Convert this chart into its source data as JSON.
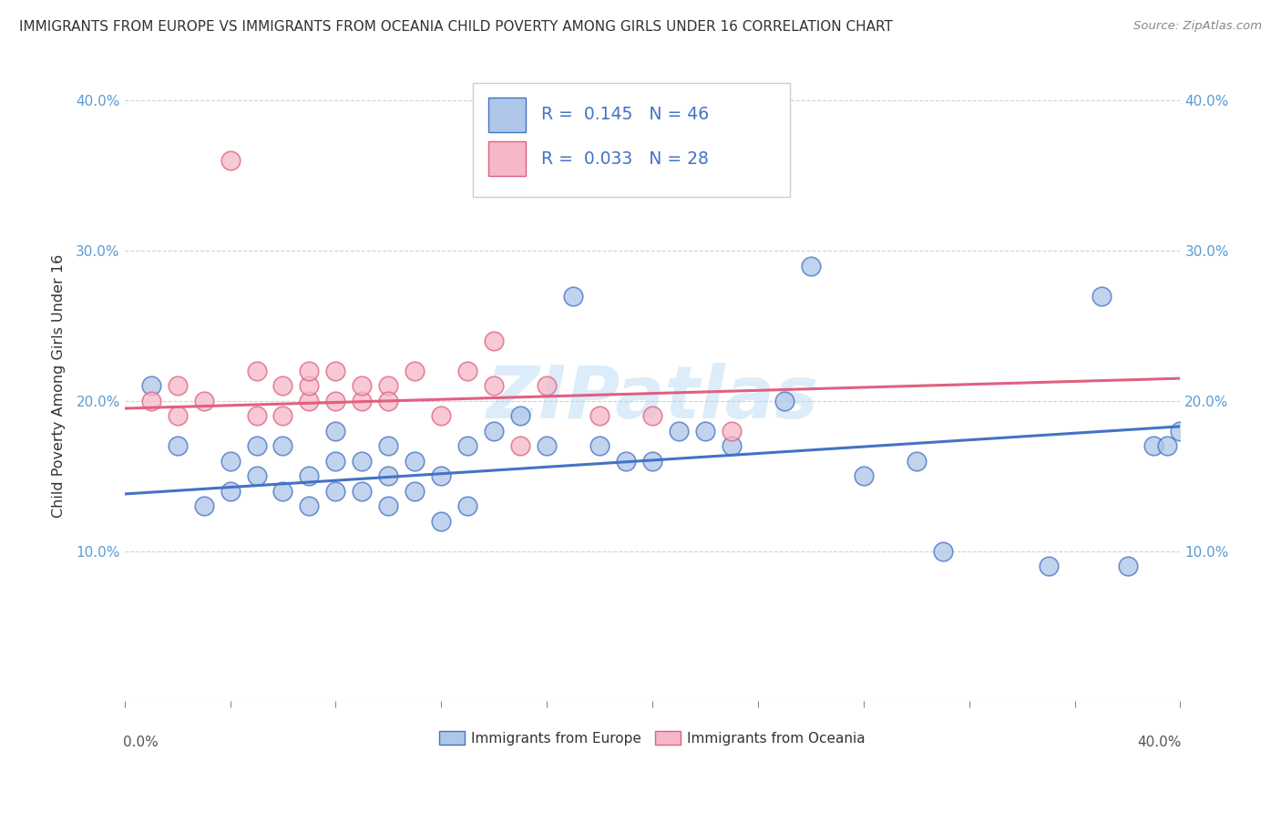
{
  "title": "IMMIGRANTS FROM EUROPE VS IMMIGRANTS FROM OCEANIA CHILD POVERTY AMONG GIRLS UNDER 16 CORRELATION CHART",
  "source": "Source: ZipAtlas.com",
  "ylabel": "Child Poverty Among Girls Under 16",
  "xlim": [
    0.0,
    0.4
  ],
  "ylim": [
    0.0,
    0.42
  ],
  "yticks": [
    0.1,
    0.2,
    0.3,
    0.4
  ],
  "ytick_labels": [
    "10.0%",
    "20.0%",
    "30.0%",
    "40.0%"
  ],
  "xtick_labels": [
    "0.0%",
    "40.0%"
  ],
  "legend_labels": [
    "Immigrants from Europe",
    "Immigrants from Oceania"
  ],
  "blue_R": "0.145",
  "blue_N": "46",
  "pink_R": "0.033",
  "pink_N": "28",
  "blue_color": "#aec6e8",
  "pink_color": "#f4b8c8",
  "blue_edge_color": "#4472c4",
  "pink_edge_color": "#e06080",
  "blue_line_color": "#4472c4",
  "pink_line_color": "#e06080",
  "watermark": "ZIPatlas",
  "blue_scatter_x": [
    0.01,
    0.02,
    0.03,
    0.04,
    0.04,
    0.05,
    0.05,
    0.06,
    0.06,
    0.07,
    0.07,
    0.08,
    0.08,
    0.08,
    0.09,
    0.09,
    0.1,
    0.1,
    0.1,
    0.11,
    0.11,
    0.12,
    0.12,
    0.13,
    0.13,
    0.14,
    0.15,
    0.16,
    0.17,
    0.18,
    0.19,
    0.2,
    0.21,
    0.22,
    0.23,
    0.25,
    0.26,
    0.28,
    0.3,
    0.31,
    0.35,
    0.37,
    0.38,
    0.39,
    0.395,
    0.4
  ],
  "blue_scatter_y": [
    0.21,
    0.17,
    0.13,
    0.14,
    0.16,
    0.15,
    0.17,
    0.14,
    0.17,
    0.13,
    0.15,
    0.14,
    0.16,
    0.18,
    0.14,
    0.16,
    0.13,
    0.15,
    0.17,
    0.14,
    0.16,
    0.12,
    0.15,
    0.13,
    0.17,
    0.18,
    0.19,
    0.17,
    0.27,
    0.17,
    0.16,
    0.16,
    0.18,
    0.18,
    0.17,
    0.2,
    0.29,
    0.15,
    0.16,
    0.1,
    0.09,
    0.27,
    0.09,
    0.17,
    0.17,
    0.18
  ],
  "pink_scatter_x": [
    0.01,
    0.02,
    0.02,
    0.03,
    0.04,
    0.05,
    0.05,
    0.06,
    0.06,
    0.07,
    0.07,
    0.07,
    0.08,
    0.08,
    0.09,
    0.09,
    0.1,
    0.1,
    0.11,
    0.12,
    0.13,
    0.14,
    0.14,
    0.15,
    0.16,
    0.18,
    0.2,
    0.23
  ],
  "pink_scatter_y": [
    0.2,
    0.19,
    0.21,
    0.2,
    0.36,
    0.22,
    0.19,
    0.21,
    0.19,
    0.2,
    0.21,
    0.22,
    0.2,
    0.22,
    0.2,
    0.21,
    0.21,
    0.2,
    0.22,
    0.19,
    0.22,
    0.21,
    0.24,
    0.17,
    0.21,
    0.19,
    0.19,
    0.18
  ],
  "blue_trend_x": [
    0.0,
    0.4
  ],
  "blue_trend_y": [
    0.138,
    0.183
  ],
  "pink_trend_x": [
    0.0,
    0.4
  ],
  "pink_trend_y": [
    0.195,
    0.215
  ]
}
